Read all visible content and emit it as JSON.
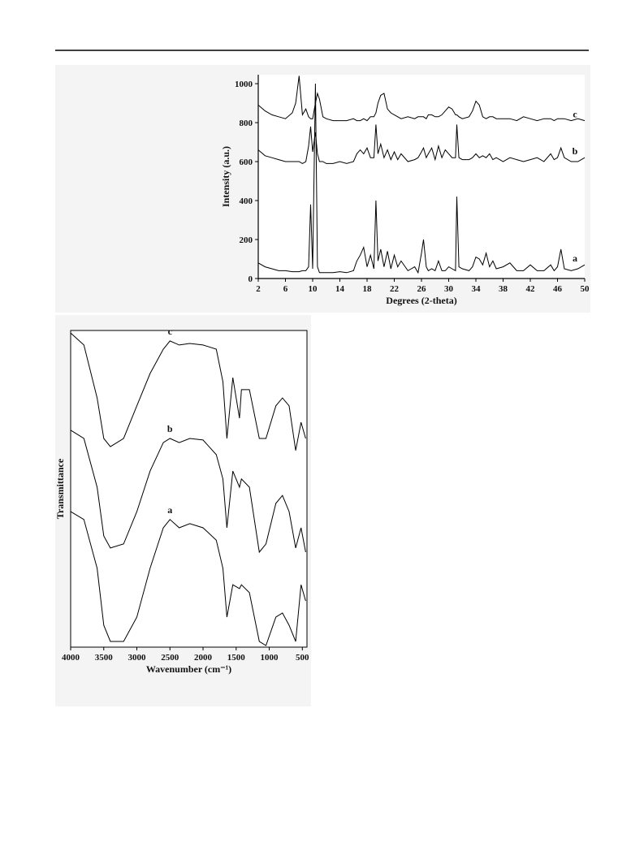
{
  "chart_data": [
    {
      "type": "line",
      "x_label": "Degrees (2-theta)",
      "y_label": "Intensity (a.u.)",
      "x": [
        2,
        3,
        4,
        5,
        6,
        7,
        7.5,
        8,
        8.5,
        9,
        9.4,
        9.7,
        10,
        10.4,
        10.7,
        11,
        11.5,
        12,
        13,
        14,
        15,
        16,
        16.5,
        17,
        17.5,
        18,
        18.5,
        19,
        19.3,
        19.6,
        20,
        20.5,
        21,
        21.5,
        22,
        22.5,
        23,
        24,
        25,
        25.5,
        26,
        26.3,
        26.7,
        27,
        27.5,
        28,
        28.5,
        29,
        29.5,
        30,
        30.5,
        31,
        31.2,
        31.5,
        32,
        33,
        33.5,
        34,
        34.5,
        35,
        35.5,
        36,
        36.5,
        37,
        38,
        39,
        40,
        41,
        42,
        43,
        44,
        45,
        45.5,
        46,
        46.5,
        47,
        48,
        49,
        50
      ],
      "series": [
        {
          "name": "a",
          "color": "#000000",
          "values": [
            80,
            60,
            50,
            40,
            40,
            35,
            35,
            35,
            40,
            40,
            60,
            380,
            50,
            1000,
            60,
            30,
            30,
            30,
            30,
            35,
            30,
            40,
            90,
            120,
            160,
            60,
            120,
            50,
            400,
            90,
            150,
            60,
            140,
            50,
            120,
            60,
            90,
            40,
            60,
            30,
            130,
            200,
            60,
            40,
            50,
            40,
            90,
            40,
            40,
            60,
            50,
            40,
            420,
            60,
            50,
            40,
            60,
            110,
            100,
            70,
            130,
            60,
            90,
            50,
            60,
            80,
            40,
            40,
            70,
            40,
            40,
            70,
            40,
            60,
            150,
            50,
            40,
            50,
            70
          ]
        },
        {
          "name": "b",
          "color": "#000000",
          "values": [
            660,
            630,
            620,
            610,
            600,
            600,
            600,
            600,
            590,
            600,
            680,
            780,
            650,
            750,
            640,
            600,
            600,
            590,
            590,
            600,
            590,
            600,
            640,
            660,
            640,
            670,
            620,
            620,
            790,
            640,
            690,
            620,
            660,
            610,
            650,
            610,
            640,
            600,
            610,
            620,
            650,
            670,
            620,
            640,
            670,
            610,
            680,
            620,
            660,
            640,
            620,
            620,
            790,
            620,
            610,
            610,
            620,
            640,
            620,
            630,
            620,
            640,
            610,
            620,
            600,
            620,
            610,
            600,
            610,
            620,
            600,
            640,
            610,
            620,
            670,
            620,
            600,
            600,
            620
          ]
        },
        {
          "name": "c",
          "color": "#000000",
          "values": [
            890,
            860,
            840,
            830,
            820,
            850,
            900,
            1040,
            840,
            870,
            830,
            820,
            820,
            900,
            950,
            920,
            830,
            820,
            810,
            810,
            810,
            820,
            810,
            810,
            820,
            810,
            830,
            830,
            850,
            900,
            940,
            950,
            870,
            850,
            840,
            830,
            820,
            830,
            820,
            830,
            830,
            830,
            820,
            840,
            840,
            830,
            830,
            840,
            860,
            880,
            870,
            840,
            840,
            830,
            820,
            830,
            860,
            910,
            890,
            830,
            820,
            830,
            830,
            820,
            820,
            820,
            810,
            830,
            820,
            810,
            820,
            820,
            810,
            820,
            820,
            820,
            810,
            820,
            810
          ]
        }
      ],
      "xlim": [
        2,
        50
      ],
      "xticks": [
        2,
        6,
        10,
        14,
        18,
        22,
        26,
        30,
        34,
        38,
        42,
        46,
        50
      ],
      "ylim": [
        0,
        1046
      ],
      "yticks": [
        0,
        200,
        400,
        600,
        800,
        1000
      ]
    },
    {
      "type": "line",
      "x_label": "Wavenumber (cm⁻¹)",
      "y_label": "Transmittance",
      "x": [
        4000,
        3800,
        3600,
        3500,
        3400,
        3200,
        3000,
        2800,
        2600,
        2500,
        2360,
        2200,
        2000,
        1800,
        1700,
        1640,
        1550,
        1450,
        1420,
        1300,
        1150,
        1050,
        900,
        800,
        700,
        600,
        520,
        450
      ],
      "series": [
        {
          "name": "a",
          "color": "#000000",
          "values": [
            42.8,
            40.3,
            24.9,
            6.9,
            1.8,
            1.8,
            9.5,
            24.9,
            37.7,
            40.3,
            37.7,
            39.0,
            37.7,
            33.8,
            24.9,
            9.5,
            19.7,
            18.5,
            19.7,
            17.2,
            1.8,
            0.5,
            9.5,
            10.8,
            6.9,
            1.8,
            19.7,
            14.6
          ]
        },
        {
          "name": "b",
          "color": "#000000",
          "values": [
            68.5,
            65.9,
            50.5,
            35.1,
            31.3,
            32.6,
            42.8,
            55.6,
            64.6,
            65.9,
            64.6,
            65.9,
            65.4,
            60.8,
            53.1,
            37.7,
            55.6,
            50.5,
            53.1,
            50.5,
            30.0,
            32.6,
            45.4,
            47.9,
            42.8,
            31.3,
            37.7,
            30.0
          ]
        },
        {
          "name": "c",
          "color": "#000000",
          "values": [
            99.2,
            95.4,
            78.7,
            65.9,
            63.3,
            65.9,
            76.2,
            86.4,
            94.1,
            96.7,
            95.4,
            95.9,
            95.4,
            94.1,
            83.8,
            65.9,
            85.1,
            72.3,
            81.3,
            81.3,
            65.9,
            65.9,
            76.2,
            78.7,
            76.2,
            62.1,
            71.0,
            65.9
          ]
        }
      ],
      "xlim": [
        4000,
        430
      ],
      "xticks": [
        4000,
        3500,
        3000,
        2500,
        2000,
        1500,
        1000,
        500
      ],
      "ylim": [
        0,
        100
      ]
    }
  ]
}
